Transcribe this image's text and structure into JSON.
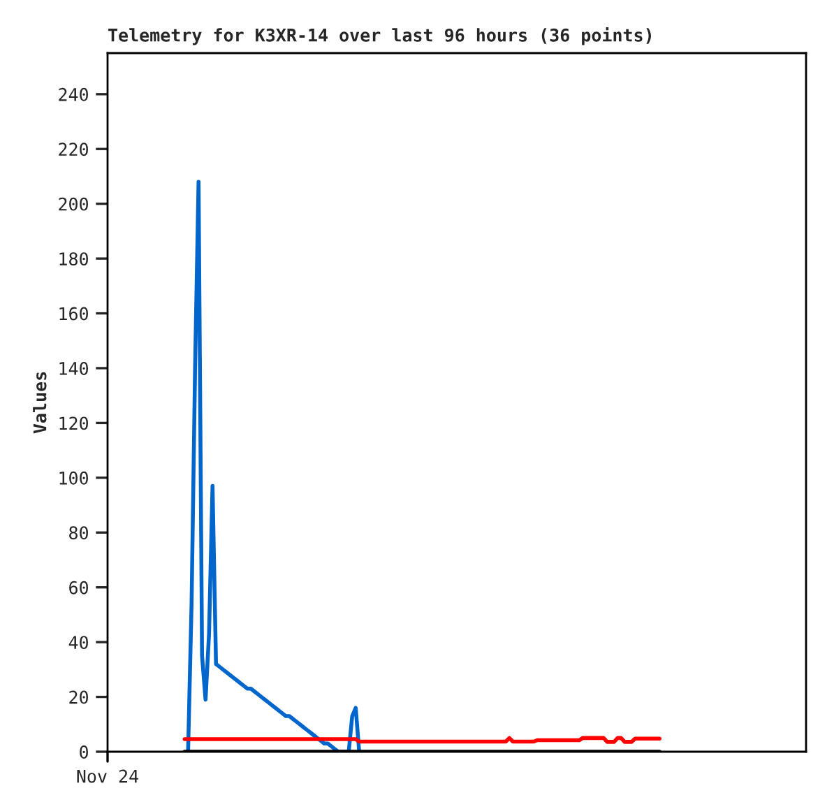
{
  "chart_data": {
    "type": "line",
    "title": "Telemetry for K3XR-14 over last 96 hours (36 points)",
    "ylabel": "Values",
    "annotations": [
      "Nov 24"
    ],
    "tick_labels": "y",
    "categories": [
      null,
      null,
      null,
      null,
      null,
      null,
      null,
      null,
      null,
      null,
      null,
      null,
      null,
      null,
      null,
      null,
      null,
      null,
      null,
      null,
      null,
      null,
      null,
      null,
      null,
      null,
      null,
      null,
      null,
      null,
      null,
      null,
      null,
      null,
      null,
      null,
      null,
      null,
      null,
      null,
      null,
      null,
      null,
      null,
      null,
      null,
      null,
      null,
      null,
      null,
      null,
      null,
      null,
      null,
      null,
      null,
      null,
      null,
      null,
      null,
      null,
      null,
      null,
      null,
      null,
      null,
      null,
      null,
      null,
      null,
      null,
      null,
      null,
      null,
      null,
      null,
      null,
      null,
      null,
      null,
      null,
      null,
      null,
      null,
      null,
      null,
      null,
      null,
      null,
      null,
      null,
      null,
      null,
      null,
      null,
      null,
      null,
      null,
      null,
      null,
      null,
      null,
      null,
      null,
      null,
      null,
      null,
      null,
      null,
      null,
      null,
      null,
      null,
      null,
      null,
      null,
      null,
      null,
      null,
      null,
      null,
      null,
      null,
      null,
      null,
      null,
      null,
      null,
      null,
      null,
      null,
      null,
      null,
      null,
      null,
      null,
      null
    ],
    "ylim": [
      0,
      255
    ],
    "yticks": [
      0,
      20,
      40,
      60,
      80,
      100,
      120,
      140,
      160,
      180,
      200,
      220,
      240
    ],
    "grid": false,
    "legend": false,
    "marker": "none",
    "line_style": "solid",
    "series": [
      {
        "color": "#0066cc",
        "values": [
          null,
          0,
          54,
          140,
          208,
          35,
          19,
          43,
          97,
          32,
          31,
          30,
          29,
          28,
          27,
          26,
          25,
          24,
          23,
          23,
          22,
          21,
          20,
          19,
          18,
          17,
          16,
          15,
          14,
          13,
          13,
          12,
          11,
          10,
          9,
          8,
          7,
          6,
          5,
          4,
          3,
          3,
          2,
          1,
          0,
          0,
          0,
          0,
          13,
          16,
          0,
          null,
          null,
          null,
          null,
          null,
          null,
          null,
          null,
          null,
          null,
          null,
          null,
          null,
          null,
          null,
          null,
          null,
          null,
          null,
          null,
          null,
          null,
          null,
          null,
          null,
          null,
          null,
          null,
          null,
          null,
          null,
          null,
          null,
          null,
          null,
          null,
          null,
          null,
          null,
          null,
          null,
          null,
          null,
          null,
          null,
          null,
          null,
          null,
          null,
          null,
          null,
          null,
          null,
          null,
          null,
          null,
          null,
          null,
          null,
          null,
          null,
          null,
          null,
          null,
          null,
          null,
          null,
          null,
          null,
          null,
          null,
          null,
          null,
          null,
          null,
          null,
          null,
          null,
          null,
          null,
          null,
          null,
          null,
          null,
          null,
          null
        ]
      },
      {
        "color": "#ff0000",
        "values": [
          4.6,
          4.6,
          4.6,
          4.6,
          4.6,
          4.6,
          4.6,
          4.6,
          4.6,
          4.6,
          4.6,
          4.6,
          4.6,
          4.6,
          4.6,
          4.6,
          4.6,
          4.6,
          4.6,
          4.6,
          4.6,
          4.6,
          4.6,
          4.6,
          4.6,
          4.6,
          4.6,
          4.6,
          4.6,
          4.6,
          4.6,
          4.6,
          4.6,
          4.6,
          4.6,
          4.6,
          4.6,
          4.6,
          4.6,
          4.6,
          4.6,
          4.6,
          4.6,
          4.6,
          4.6,
          4.6,
          4.6,
          4.6,
          4.6,
          4.6,
          3.7,
          3.7,
          3.7,
          3.7,
          3.7,
          3.7,
          3.7,
          3.7,
          3.7,
          3.7,
          3.7,
          3.7,
          3.7,
          3.7,
          3.7,
          3.7,
          3.7,
          3.7,
          3.7,
          3.7,
          3.7,
          3.7,
          3.7,
          3.7,
          3.7,
          3.7,
          3.7,
          3.7,
          3.7,
          3.7,
          3.7,
          3.7,
          3.7,
          3.7,
          3.7,
          3.7,
          3.7,
          3.7,
          3.7,
          3.7,
          3.7,
          3.7,
          3.7,
          5.0,
          3.7,
          3.7,
          3.7,
          3.7,
          3.7,
          3.7,
          3.7,
          4.2,
          4.2,
          4.2,
          4.2,
          4.2,
          4.2,
          4.2,
          4.2,
          4.2,
          4.2,
          4.2,
          4.2,
          4.2,
          5.0,
          5.0,
          5.0,
          5.0,
          5.0,
          5.0,
          5.0,
          3.6,
          3.6,
          3.6,
          5.0,
          5.0,
          3.6,
          3.6,
          3.6,
          4.8,
          4.8,
          4.8,
          4.8,
          4.8,
          4.8,
          4.8,
          4.8
        ]
      },
      {
        "color": "#000000",
        "values": [
          0,
          0,
          0,
          0,
          0,
          0,
          0,
          0,
          0,
          0,
          0,
          0,
          0,
          0,
          0,
          0,
          0,
          0,
          0,
          0,
          0,
          0,
          0,
          0,
          0,
          0,
          0,
          0,
          0,
          0,
          0,
          0,
          0,
          0,
          0,
          0,
          0,
          0,
          0,
          0,
          0,
          0,
          0,
          0,
          0,
          0,
          0,
          0,
          0,
          0,
          0,
          0,
          0,
          0,
          0,
          0,
          0,
          0,
          0,
          0,
          0,
          0,
          0,
          0,
          0,
          0,
          0,
          0,
          0,
          0,
          0,
          0,
          0,
          0,
          0,
          0,
          0,
          0,
          0,
          0,
          0,
          0,
          0,
          0,
          0,
          0,
          0,
          0,
          0,
          0,
          0,
          0,
          0,
          0,
          0,
          0,
          0,
          0,
          0,
          0,
          0,
          0,
          0,
          0,
          0,
          0,
          0,
          0,
          0,
          0,
          0,
          0,
          0,
          0,
          0,
          0,
          0,
          0,
          0,
          0,
          0,
          0,
          0,
          0,
          0,
          0,
          0,
          0,
          0,
          0,
          0,
          0,
          0,
          0,
          0,
          0,
          0
        ]
      }
    ]
  }
}
